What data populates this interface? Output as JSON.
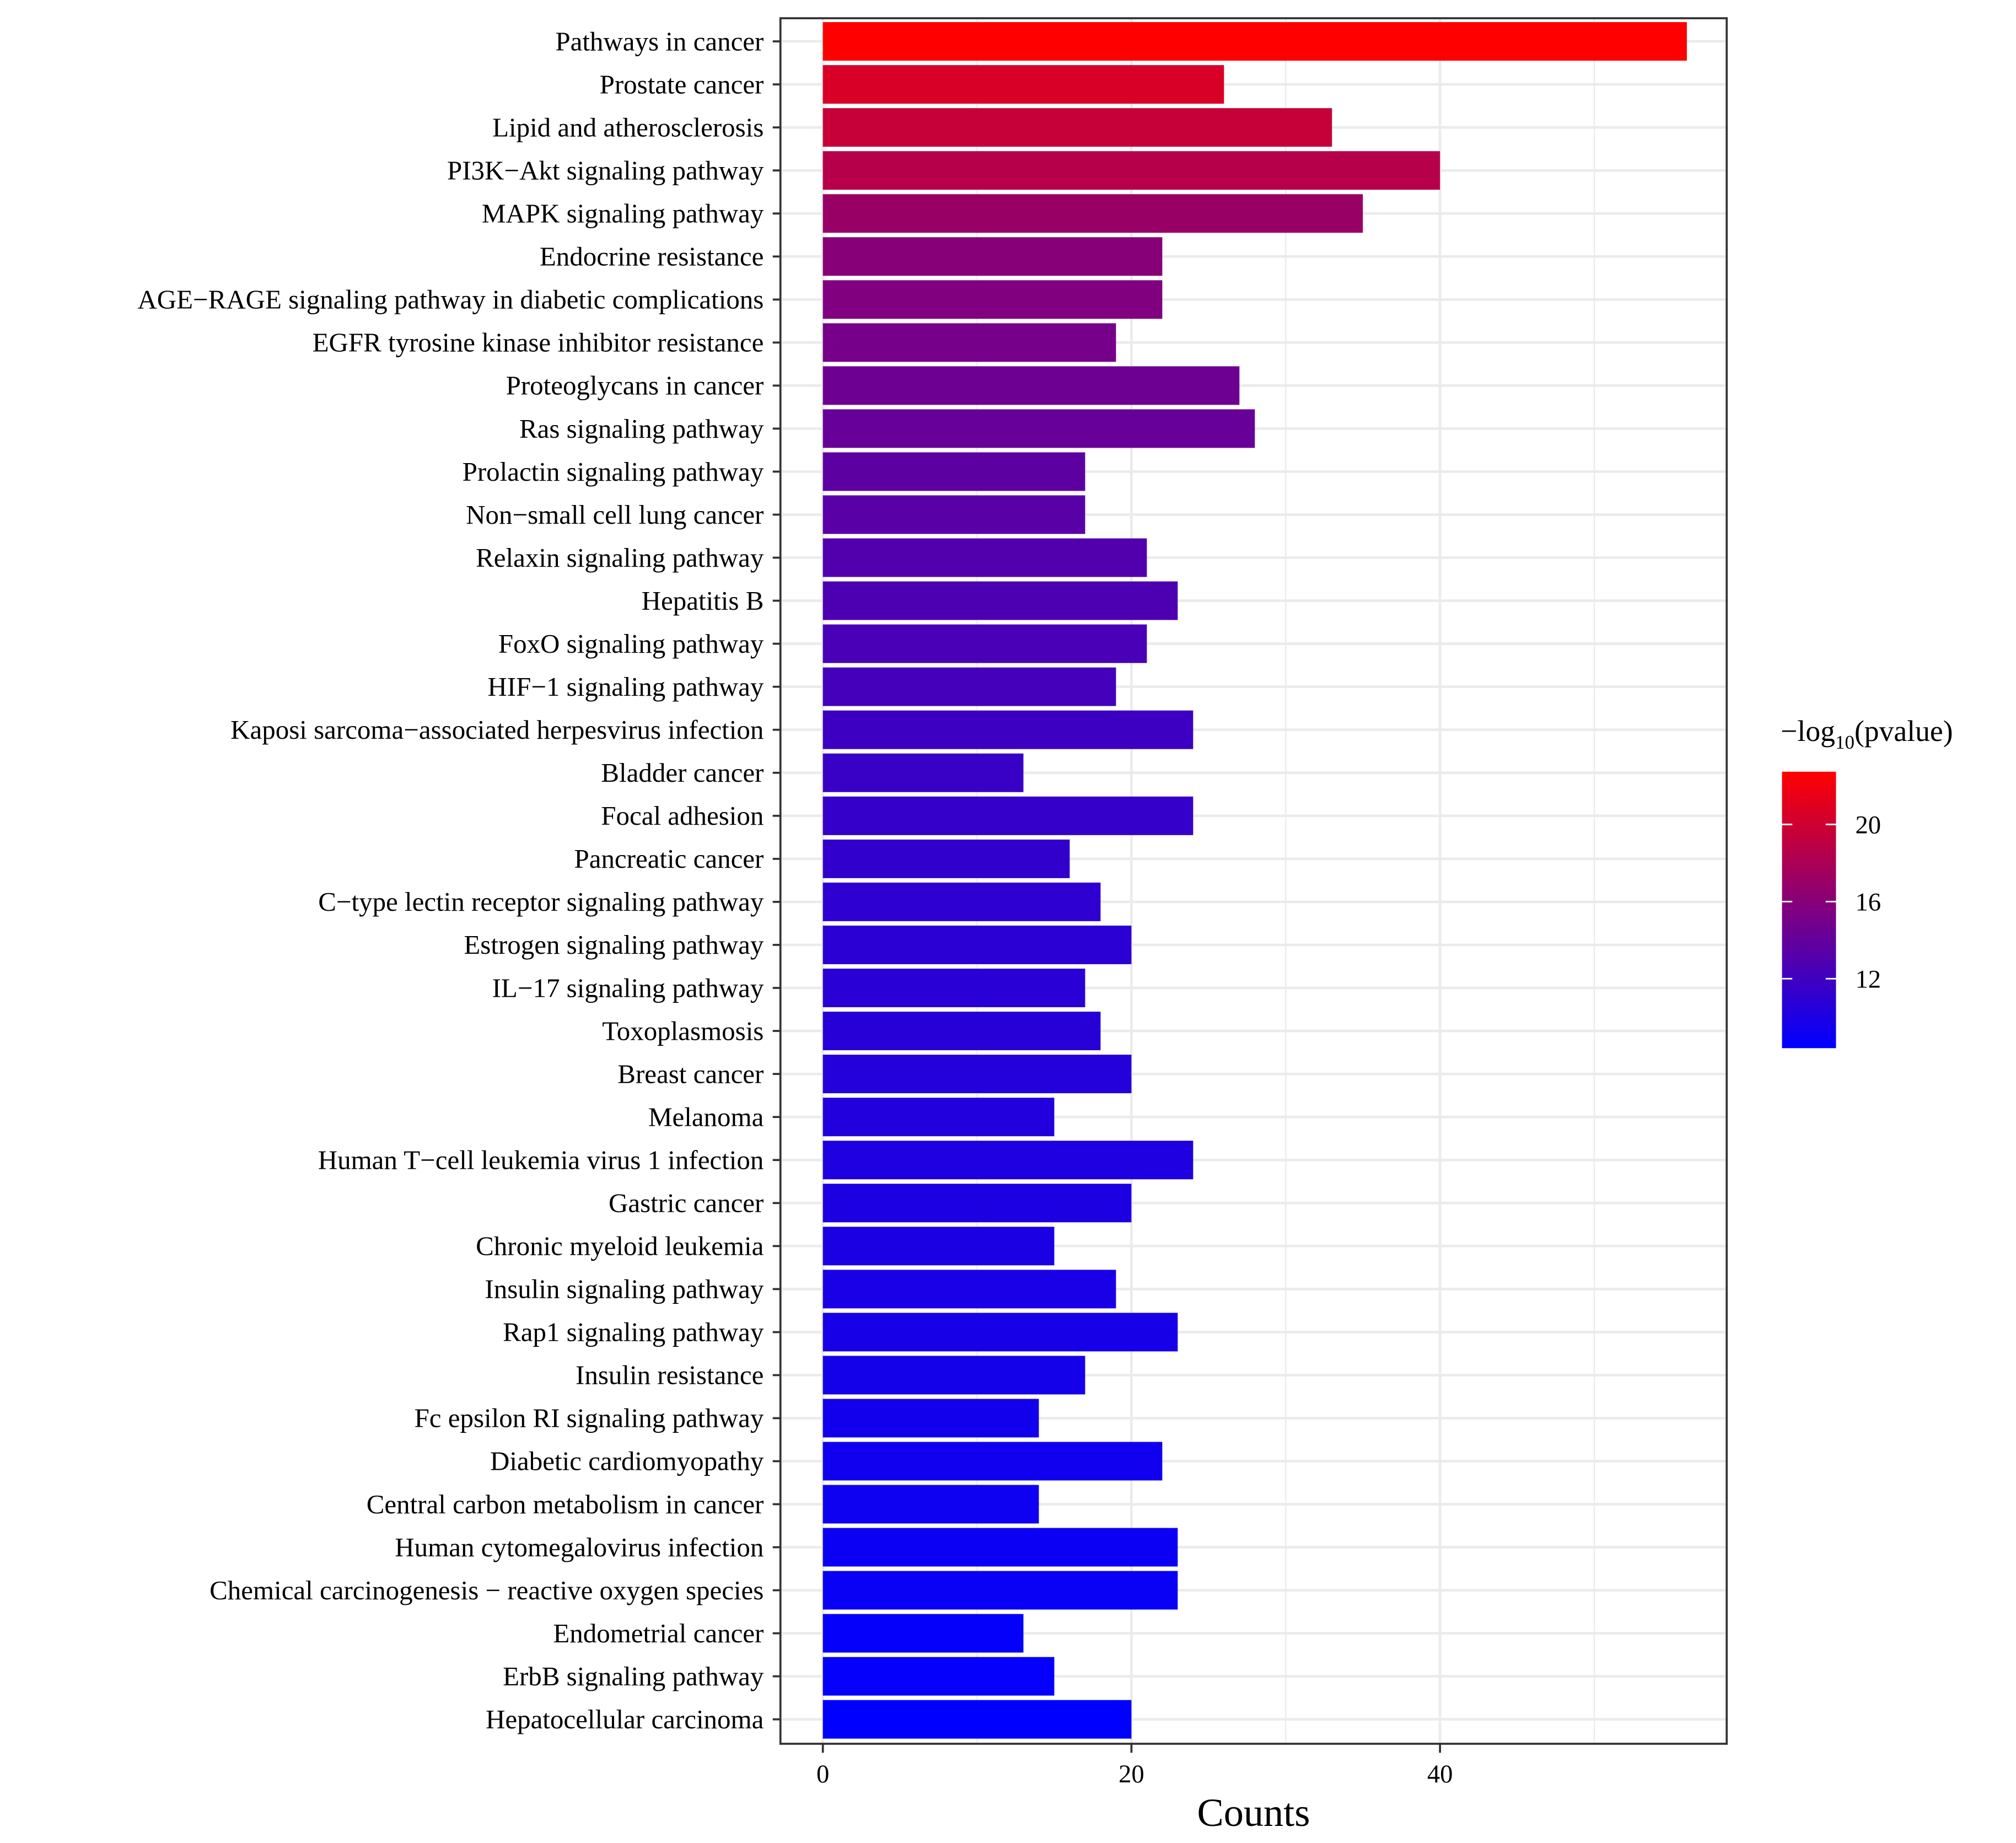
{
  "chart_data": {
    "type": "bar",
    "orientation": "horizontal",
    "title": "",
    "xlabel": "Counts",
    "ylabel": "",
    "xlim": [
      -1.4,
      58
    ],
    "xticks": [
      0,
      20,
      40
    ],
    "grid": true,
    "categories": [
      "Pathways in cancer",
      "Prostate cancer",
      "Lipid and atherosclerosis",
      "PI3K−Akt signaling pathway",
      "MAPK signaling pathway",
      "Endocrine resistance",
      "AGE−RAGE signaling pathway in diabetic complications",
      "EGFR tyrosine kinase inhibitor resistance",
      "Proteoglycans in cancer",
      "Ras signaling pathway",
      "Prolactin signaling pathway",
      "Non−small cell lung cancer",
      "Relaxin signaling pathway",
      "Hepatitis B",
      "FoxO signaling pathway",
      "HIF−1 signaling pathway",
      "Kaposi sarcoma−associated herpesvirus infection",
      "Bladder cancer",
      "Focal adhesion",
      "Pancreatic cancer",
      "C−type lectin receptor signaling pathway",
      "Estrogen signaling pathway",
      "IL−17 signaling pathway",
      "Toxoplasmosis",
      "Breast cancer",
      "Melanoma",
      "Human T−cell leukemia virus 1 infection",
      "Gastric cancer",
      "Chronic myeloid leukemia",
      "Insulin signaling pathway",
      "Rap1 signaling pathway",
      "Insulin resistance",
      "Fc epsilon RI signaling pathway",
      "Diabetic cardiomyopathy",
      "Central carbon metabolism in cancer",
      "Human cytomegalovirus infection",
      "Chemical carcinogenesis − reactive oxygen species",
      "Endometrial cancer",
      "ErbB signaling pathway",
      "Hepatocellular carcinoma"
    ],
    "values": [
      56,
      26,
      33,
      40,
      35,
      22,
      22,
      19,
      27,
      28,
      17,
      17,
      21,
      23,
      21,
      19,
      24,
      13,
      24,
      16,
      18,
      20,
      17,
      18,
      20,
      15,
      24,
      20,
      15,
      19,
      23,
      17,
      14,
      22,
      14,
      23,
      23,
      13,
      15,
      20
    ],
    "color_values": [
      22.7,
      20.5,
      19.5,
      18.6,
      17.0,
      16.0,
      15.6,
      15.0,
      14.5,
      14.2,
      13.6,
      13.4,
      13.0,
      12.7,
      12.5,
      12.2,
      11.8,
      11.6,
      11.4,
      11.2,
      11.0,
      10.8,
      10.7,
      10.6,
      10.4,
      10.3,
      10.1,
      10.0,
      9.9,
      9.8,
      9.7,
      9.6,
      9.4,
      9.3,
      9.2,
      9.0,
      8.9,
      8.7,
      8.6,
      8.4
    ],
    "legend": {
      "title_prefix": "−log",
      "title_sub": "10",
      "title_suffix": "(pvalue)",
      "ticks": [
        20,
        16,
        12
      ],
      "range": [
        8.4,
        22.7
      ],
      "low_color": "#0000ff",
      "high_color": "#ff0000",
      "placement": "right"
    }
  }
}
